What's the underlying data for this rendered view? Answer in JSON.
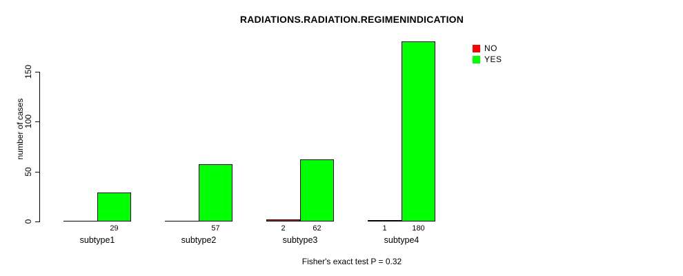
{
  "title": "RADIATIONS.RADIATION.REGIMENINDICATION",
  "annotation": "Fisher's exact test P = 0.32",
  "y_axis_label": "number of cases",
  "legend": {
    "items": [
      {
        "label": "NO",
        "color": "#ff0000"
      },
      {
        "label": "YES",
        "color": "#00ff00"
      }
    ]
  },
  "chart_data": {
    "type": "bar",
    "title": "RADIATIONS.RADIATION.REGIMENINDICATION",
    "categories": [
      "subtype1",
      "subtype2",
      "subtype3",
      "subtype4"
    ],
    "series": [
      {
        "name": "NO",
        "color": "#ff0000",
        "values": [
          0,
          0,
          2,
          1
        ],
        "bar_labels": [
          "",
          "",
          "2",
          "1"
        ]
      },
      {
        "name": "YES",
        "color": "#00ff00",
        "values": [
          29,
          57,
          62,
          180
        ],
        "bar_labels": [
          "29",
          "57",
          "62",
          "180"
        ]
      }
    ],
    "xlabel": "",
    "ylabel": "number of cases",
    "ylim": [
      0,
      180
    ],
    "yticks": [
      0,
      50,
      100,
      150
    ],
    "grid": false,
    "bar_border_color": "#000000",
    "legend_position": "top-right",
    "annotation": "Fisher's exact test P = 0.32"
  }
}
